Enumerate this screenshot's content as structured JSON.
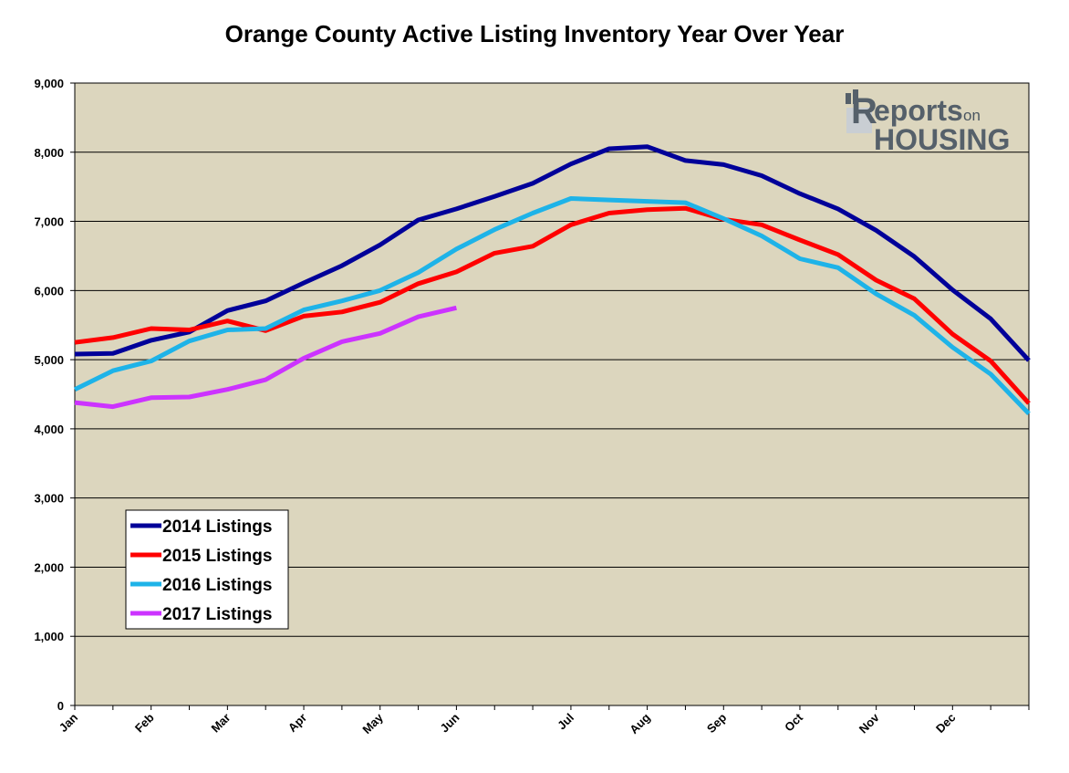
{
  "chart_data": {
    "type": "line",
    "title": "Orange County Active Listing Inventory Year Over Year",
    "xlabel": "",
    "ylabel": "",
    "ylim": [
      0,
      9000
    ],
    "yticks": [
      "0",
      "1,000",
      "2,000",
      "3,000",
      "4,000",
      "5,000",
      "6,000",
      "7,000",
      "8,000",
      "9,000"
    ],
    "month_labels": [
      "Jan",
      "Feb",
      "Mar",
      "Apr",
      "May",
      "Jun",
      "Jul",
      "Aug",
      "Sep",
      "Oct",
      "Nov",
      "Dec"
    ],
    "month_label_points": [
      0,
      2,
      4,
      6,
      8,
      10,
      13,
      15,
      17,
      19,
      21,
      23
    ],
    "grid": "horizontal",
    "legend_position": "bottom-left",
    "background_color": "#DCD6BE",
    "series": [
      {
        "name": "2014 Listings",
        "color": "#000099",
        "values": [
          5080,
          5090,
          5280,
          5400,
          5710,
          5850,
          6110,
          6360,
          6660,
          7020,
          7180,
          7360,
          7550,
          7830,
          8050,
          8080,
          7880,
          7820,
          7660,
          7400,
          7180,
          6870,
          6490,
          6010,
          5590,
          4990
        ]
      },
      {
        "name": "2015 Listings",
        "color": "#FF0000",
        "values": [
          5250,
          5320,
          5450,
          5430,
          5560,
          5420,
          5630,
          5690,
          5830,
          6100,
          6270,
          6540,
          6640,
          6950,
          7120,
          7170,
          7190,
          7030,
          6950,
          6730,
          6520,
          6150,
          5880,
          5370,
          4980,
          4370
        ]
      },
      {
        "name": "2016 Listings",
        "color": "#1EB3E8",
        "values": [
          4570,
          4840,
          4980,
          5270,
          5430,
          5450,
          5720,
          5850,
          6000,
          6260,
          6600,
          6880,
          7120,
          7330,
          7310,
          7290,
          7270,
          7040,
          6790,
          6460,
          6330,
          5950,
          5640,
          5180,
          4790,
          4220
        ]
      },
      {
        "name": "2017 Listings",
        "color": "#CC33FF",
        "values": [
          4380,
          4320,
          4450,
          4460,
          4570,
          4710,
          5020,
          5260,
          5380,
          5620,
          5750
        ]
      }
    ]
  },
  "logo": {
    "line1": "eports",
    "line1_initial": "R",
    "line1_suffix": "on",
    "line2": "HOUSING"
  }
}
